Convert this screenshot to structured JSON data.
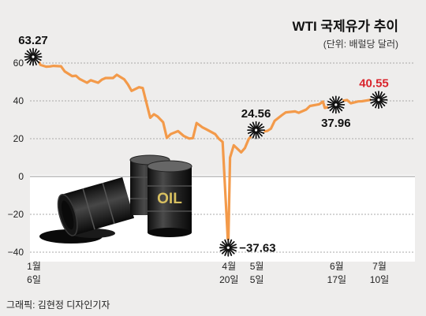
{
  "chart_data": {
    "type": "line",
    "title": "WTI 국제유가 추이",
    "subtitle": "(단위: 배럴당 달러)",
    "ylim": [
      -40,
      70
    ],
    "yticks": [
      60,
      40,
      20,
      0,
      -20,
      -40
    ],
    "grid": true,
    "date_range": [
      "2020-01-06",
      "2020-07-10"
    ],
    "x_tick_labels": [
      {
        "date": "2020-01-06",
        "lines": [
          "1월",
          "6일"
        ]
      },
      {
        "date": "2020-04-20",
        "lines": [
          "4월",
          "20일"
        ]
      },
      {
        "date": "2020-05-05",
        "lines": [
          "5월",
          "5일"
        ]
      },
      {
        "date": "2020-06-17",
        "lines": [
          "6월",
          "17일"
        ]
      },
      {
        "date": "2020-07-10",
        "lines": [
          "7월",
          "10일"
        ]
      }
    ],
    "series": [
      {
        "color": "#f39a4a",
        "points": [
          [
            "2020-01-06",
            63.27
          ],
          [
            "2020-01-08",
            62.7
          ],
          [
            "2020-01-10",
            59.0
          ],
          [
            "2020-01-13",
            58.1
          ],
          [
            "2020-01-15",
            58.2
          ],
          [
            "2020-01-17",
            58.5
          ],
          [
            "2020-01-21",
            58.3
          ],
          [
            "2020-01-23",
            55.6
          ],
          [
            "2020-01-27",
            53.1
          ],
          [
            "2020-01-29",
            53.3
          ],
          [
            "2020-01-31",
            51.6
          ],
          [
            "2020-02-04",
            49.6
          ],
          [
            "2020-02-06",
            50.9
          ],
          [
            "2020-02-10",
            49.6
          ],
          [
            "2020-02-12",
            51.2
          ],
          [
            "2020-02-14",
            52.1
          ],
          [
            "2020-02-18",
            52.1
          ],
          [
            "2020-02-20",
            53.8
          ],
          [
            "2020-02-24",
            51.4
          ],
          [
            "2020-02-26",
            48.7
          ],
          [
            "2020-02-28",
            45.3
          ],
          [
            "2020-03-03",
            47.2
          ],
          [
            "2020-03-05",
            46.8
          ],
          [
            "2020-03-09",
            31.1
          ],
          [
            "2020-03-11",
            32.9
          ],
          [
            "2020-03-13",
            31.7
          ],
          [
            "2020-03-16",
            28.7
          ],
          [
            "2020-03-18",
            20.4
          ],
          [
            "2020-03-20",
            22.4
          ],
          [
            "2020-03-24",
            24.0
          ],
          [
            "2020-03-27",
            21.5
          ],
          [
            "2020-03-30",
            20.1
          ],
          [
            "2020-04-01",
            20.3
          ],
          [
            "2020-04-03",
            28.3
          ],
          [
            "2020-04-06",
            26.1
          ],
          [
            "2020-04-08",
            25.1
          ],
          [
            "2020-04-13",
            22.4
          ],
          [
            "2020-04-15",
            19.9
          ],
          [
            "2020-04-17",
            18.3
          ],
          [
            "2020-04-20",
            -37.63
          ],
          [
            "2020-04-21",
            10.0
          ],
          [
            "2020-04-23",
            16.5
          ],
          [
            "2020-04-27",
            12.8
          ],
          [
            "2020-04-29",
            15.1
          ],
          [
            "2020-05-01",
            19.8
          ],
          [
            "2020-05-05",
            24.56
          ],
          [
            "2020-05-07",
            23.6
          ],
          [
            "2020-05-11",
            24.1
          ],
          [
            "2020-05-13",
            25.3
          ],
          [
            "2020-05-15",
            29.4
          ],
          [
            "2020-05-19",
            32.5
          ],
          [
            "2020-05-21",
            33.9
          ],
          [
            "2020-05-26",
            34.4
          ],
          [
            "2020-05-28",
            33.7
          ],
          [
            "2020-06-01",
            35.4
          ],
          [
            "2020-06-03",
            37.3
          ],
          [
            "2020-06-08",
            38.2
          ],
          [
            "2020-06-10",
            39.6
          ],
          [
            "2020-06-11",
            36.3
          ],
          [
            "2020-06-15",
            37.1
          ],
          [
            "2020-06-17",
            37.96
          ],
          [
            "2020-06-19",
            39.8
          ],
          [
            "2020-06-23",
            40.4
          ],
          [
            "2020-06-25",
            38.7
          ],
          [
            "2020-06-29",
            39.7
          ],
          [
            "2020-07-01",
            39.8
          ],
          [
            "2020-07-06",
            40.6
          ],
          [
            "2020-07-08",
            39.9
          ],
          [
            "2020-07-10",
            40.55
          ]
        ]
      }
    ],
    "annotations": [
      {
        "date": "2020-01-06",
        "value": 63.27,
        "label": "63.27",
        "color": "#111111",
        "label_pos": "above"
      },
      {
        "date": "2020-04-20",
        "value": -37.63,
        "label": "−37.63",
        "color": "#111111",
        "label_pos": "right"
      },
      {
        "date": "2020-05-05",
        "value": 24.56,
        "label": "24.56",
        "color": "#111111",
        "label_pos": "above"
      },
      {
        "date": "2020-06-17",
        "value": 37.96,
        "label": "37.96",
        "color": "#111111",
        "label_pos": "below"
      },
      {
        "date": "2020-07-10",
        "value": 40.55,
        "label": "40.55",
        "color": "#d9242c",
        "label_pos": "above-left"
      }
    ]
  },
  "barrel_label": "OIL",
  "credit": "그래픽: 김현정 디자인기자"
}
